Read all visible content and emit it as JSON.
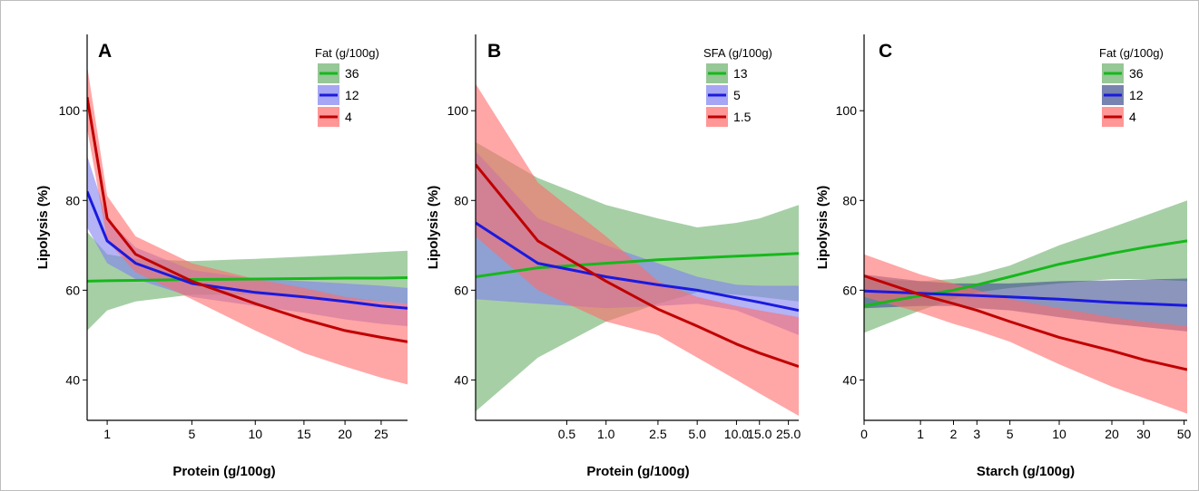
{
  "chart_data": [
    {
      "panel": "A",
      "type": "line",
      "xlabel": "Protein (g/100g)",
      "ylabel": "Lipolysis (%)",
      "x_scale": "sqrt",
      "xlim": [
        0.5,
        29
      ],
      "ylim": [
        31,
        117
      ],
      "x_ticks": [
        1,
        5,
        10,
        15,
        20,
        25
      ],
      "y_ticks": [
        40,
        60,
        80,
        100
      ],
      "legend_title": "Fat (g/100g)",
      "legend_position": "top-right",
      "grid": false,
      "series": [
        {
          "name": "36",
          "color": "#16b81b",
          "fill": "#6aaf6a",
          "x": [
            0.5,
            1,
            2,
            5,
            10,
            15,
            20,
            25,
            29
          ],
          "y": [
            62.0,
            62.1,
            62.2,
            62.4,
            62.5,
            62.6,
            62.7,
            62.7,
            62.8
          ],
          "lower": [
            51.0,
            55.5,
            57.5,
            59.0,
            59.0,
            58.5,
            58.0,
            57.5,
            57.0
          ],
          "upper": [
            73.0,
            68.0,
            67.0,
            66.5,
            67.0,
            67.5,
            68.0,
            68.5,
            68.8
          ]
        },
        {
          "name": "12",
          "color": "#1a1adf",
          "fill": "#8080f0",
          "x": [
            0.5,
            1,
            2,
            5,
            10,
            15,
            20,
            25,
            29
          ],
          "y": [
            82.0,
            71.0,
            66.0,
            61.5,
            59.5,
            58.5,
            57.5,
            56.5,
            56.0
          ],
          "lower": [
            74.0,
            66.0,
            62.5,
            58.5,
            56.5,
            55.0,
            53.5,
            52.5,
            52.0
          ],
          "upper": [
            90.0,
            76.0,
            69.5,
            64.5,
            62.5,
            62.0,
            61.5,
            61.0,
            60.5
          ]
        },
        {
          "name": "4",
          "color": "#c00000",
          "fill": "#ff6b6b",
          "x": [
            0.5,
            1,
            2,
            5,
            10,
            15,
            20,
            25,
            29
          ],
          "y": [
            103.0,
            76.0,
            68.0,
            62.0,
            57.0,
            53.5,
            51.0,
            49.5,
            48.5
          ],
          "lower": [
            96.0,
            71.0,
            64.0,
            58.0,
            51.0,
            46.0,
            43.0,
            40.5,
            39.0
          ],
          "upper": [
            110.0,
            81.0,
            72.0,
            66.0,
            62.5,
            60.5,
            58.5,
            57.5,
            57.0
          ]
        }
      ]
    },
    {
      "panel": "B",
      "type": "line",
      "xlabel": "Protein (g/100g)",
      "ylabel": "Lipolysis (%)",
      "x_scale": "log",
      "xlim": [
        0.1,
        30
      ],
      "ylim": [
        31,
        117
      ],
      "x_ticks": [
        0.5,
        1.0,
        2.5,
        5.0,
        10.0,
        15.0,
        25.0
      ],
      "x_tick_labels": [
        "0.5",
        "1.0",
        "2.5",
        "5.0",
        "10.0",
        "15.0",
        "25.0"
      ],
      "y_ticks": [
        40,
        60,
        80,
        100
      ],
      "legend_title": "SFA (g/100g)",
      "legend_position": "top-right",
      "grid": false,
      "series": [
        {
          "name": "13",
          "color": "#16b81b",
          "fill": "#6aaf6a",
          "x": [
            0.1,
            0.3,
            1.0,
            2.5,
            5.0,
            10.0,
            15.0,
            30.0
          ],
          "y": [
            63.0,
            65.0,
            66.0,
            66.8,
            67.2,
            67.6,
            67.8,
            68.2
          ],
          "lower": [
            33.0,
            45.0,
            53.0,
            57.0,
            59.5,
            59.0,
            58.5,
            57.5
          ],
          "upper": [
            93.0,
            85.0,
            79.0,
            76.0,
            74.0,
            75.0,
            76.0,
            79.0
          ]
        },
        {
          "name": "5",
          "color": "#1a1adf",
          "fill": "#8080f0",
          "x": [
            0.1,
            0.3,
            1.0,
            2.5,
            5.0,
            10.0,
            15.0,
            30.0
          ],
          "y": [
            75.0,
            66.0,
            63.0,
            61.2,
            60.0,
            58.3,
            57.3,
            55.5
          ],
          "lower": [
            58.0,
            57.0,
            56.0,
            56.5,
            57.0,
            55.5,
            53.5,
            50.0
          ],
          "upper": [
            91.0,
            76.0,
            70.0,
            66.0,
            63.0,
            61.2,
            61.0,
            61.0
          ]
        },
        {
          "name": "1.5",
          "color": "#c00000",
          "fill": "#ff6b6b",
          "x": [
            0.1,
            0.3,
            1.0,
            2.5,
            5.0,
            10.0,
            15.0,
            30.0
          ],
          "y": [
            88.0,
            71.0,
            62.0,
            55.8,
            52.0,
            48.0,
            46.0,
            43.0
          ],
          "lower": [
            72.0,
            60.0,
            53.0,
            50.0,
            45.0,
            40.0,
            37.0,
            32.0
          ],
          "upper": [
            106.0,
            84.0,
            72.0,
            62.0,
            58.5,
            56.5,
            55.5,
            54.0
          ]
        }
      ]
    },
    {
      "panel": "C",
      "type": "line",
      "xlabel": "Starch (g/100g)",
      "ylabel": "Lipolysis (%)",
      "x_scale": "log1p",
      "xlim": [
        0,
        52
      ],
      "ylim": [
        31,
        117
      ],
      "x_ticks": [
        0,
        1,
        2,
        3,
        5,
        10,
        20,
        30,
        50
      ],
      "y_ticks": [
        40,
        60,
        80,
        100
      ],
      "legend_title": "Fat (g/100g)",
      "legend_position": "top-right",
      "grid": false,
      "series": [
        {
          "name": "36",
          "color": "#16b81b",
          "fill": "#6aaf6a",
          "x": [
            0,
            1,
            2,
            3,
            5,
            10,
            20,
            30,
            52
          ],
          "y": [
            56.5,
            58.8,
            60.0,
            61.2,
            63.0,
            65.8,
            68.2,
            69.5,
            71.0
          ],
          "lower": [
            50.5,
            55.5,
            58.0,
            59.5,
            60.5,
            61.5,
            62.5,
            62.5,
            62.0
          ],
          "upper": [
            62.5,
            62.0,
            62.5,
            63.5,
            65.5,
            70.0,
            74.0,
            76.5,
            80.0
          ]
        },
        {
          "name": "12",
          "color": "#1a1adf",
          "fill": "#3f4f8f",
          "x": [
            0,
            1,
            2,
            3,
            5,
            10,
            20,
            30,
            52
          ],
          "y": [
            59.8,
            59.3,
            59.0,
            58.8,
            58.5,
            58.0,
            57.3,
            57.0,
            56.6
          ],
          "lower": [
            56.0,
            56.5,
            56.5,
            56.0,
            55.5,
            54.0,
            52.5,
            51.8,
            50.8
          ],
          "upper": [
            63.5,
            62.0,
            61.5,
            61.5,
            61.5,
            62.0,
            62.2,
            62.4,
            62.6
          ]
        },
        {
          "name": "4",
          "color": "#c00000",
          "fill": "#ff6b6b",
          "x": [
            0,
            1,
            2,
            3,
            5,
            10,
            20,
            30,
            52
          ],
          "y": [
            63.2,
            59.0,
            57.0,
            55.5,
            53.0,
            49.5,
            46.5,
            44.5,
            42.3
          ],
          "lower": [
            58.5,
            55.0,
            52.5,
            51.0,
            48.5,
            43.5,
            38.5,
            36.0,
            32.5
          ],
          "upper": [
            68.0,
            63.5,
            61.5,
            60.0,
            58.0,
            56.0,
            54.0,
            53.0,
            52.0
          ]
        }
      ]
    }
  ]
}
